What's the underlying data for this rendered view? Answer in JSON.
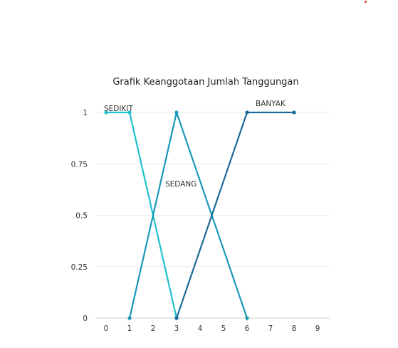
{
  "corner_marker_color": "#e53935",
  "chart_data": {
    "type": "line",
    "title": "Grafik Keanggotaan Jumlah Tanggungan",
    "xlabel": "",
    "ylabel": "",
    "x_ticks": [
      "0",
      "1",
      "2",
      "3",
      "4",
      "5",
      "6",
      "7",
      "8",
      "9"
    ],
    "y_ticks": [
      "0",
      "0.25",
      "0.5",
      "0.75",
      "1"
    ],
    "xlim": [
      0,
      9
    ],
    "ylim": [
      0,
      1
    ],
    "grid": "horizontal",
    "series": [
      {
        "name": "SEDIKIT",
        "color": "#1ec1cc",
        "points": [
          [
            0,
            1
          ],
          [
            1,
            1
          ],
          [
            3,
            0
          ]
        ]
      },
      {
        "name": "SEDANG",
        "color": "#1a98b8",
        "points": [
          [
            1,
            0
          ],
          [
            3,
            1
          ],
          [
            6,
            0
          ]
        ]
      },
      {
        "name": "BANYAK",
        "color": "#1a6a96",
        "points": [
          [
            3,
            0
          ],
          [
            6,
            1
          ],
          [
            8,
            1
          ]
        ]
      }
    ]
  }
}
